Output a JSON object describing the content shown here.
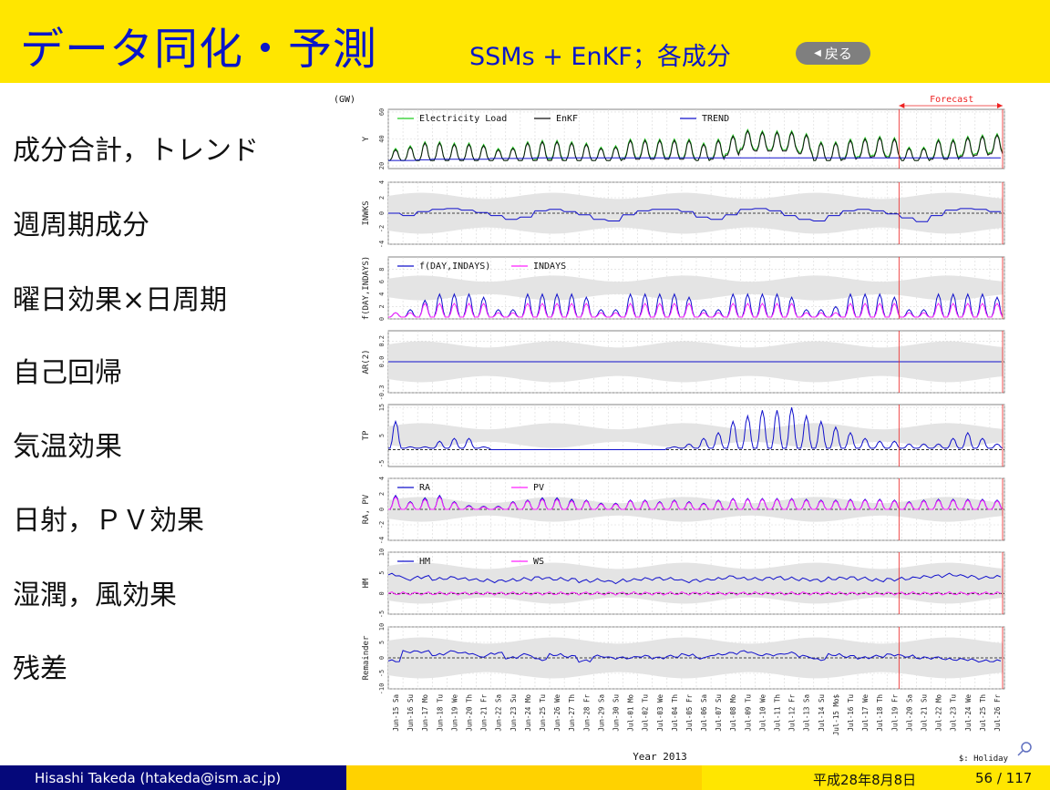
{
  "slide": {
    "title": "データ同化・予測",
    "subtitle": "SSMs + EnKF；各成分",
    "back_label": "戻る",
    "row_labels": [
      "成分合計，トレンド",
      "週周期成分",
      "曜日効果×日周期",
      "自己回帰",
      "気温効果",
      "日射，ＰＶ効果",
      "湿潤，風効果",
      "残差"
    ],
    "footer": {
      "author": "Hisashi Takeda  (htakeda@ism.ac.jp)",
      "date": "平成28年8月8日",
      "page": "56 / 117"
    }
  },
  "colors": {
    "header_bg": "#ffe600",
    "title": "#0a16c8",
    "footer_left": "#05087a",
    "footer_mid": "#ffd200"
  },
  "icons": {
    "back": "left-triangle-icon",
    "search": "search-icon"
  },
  "chart_data": {
    "type": "line",
    "xlabel": "Year 2013",
    "note": "$: Holiday",
    "forecast_label": "Forecast",
    "y_unit": "(GW)",
    "dates": [
      "Jun-15",
      "Jun-16",
      "Jun-17",
      "Jun-18",
      "Jun-19",
      "Jun-20",
      "Jun-21",
      "Jun-22",
      "Jun-23",
      "Jun-24",
      "Jun-25",
      "Jun-26",
      "Jun-27",
      "Jun-28",
      "Jun-29",
      "Jun-30",
      "Jul-01",
      "Jul-02",
      "Jul-03",
      "Jul-04",
      "Jul-05",
      "Jul-06",
      "Jul-07",
      "Jul-08",
      "Jul-09",
      "Jul-10",
      "Jul-11",
      "Jul-12",
      "Jul-13",
      "Jul-14",
      "Jul-15",
      "Jul-16",
      "Jul-17",
      "Jul-18",
      "Jul-19",
      "Jul-20",
      "Jul-21",
      "Jul-22",
      "Jul-23",
      "Jul-24",
      "Jul-25",
      "Jul-26"
    ],
    "days": [
      "Sa",
      "Su",
      "Mo",
      "Tu",
      "We",
      "Th",
      "Fr",
      "Sa",
      "Su",
      "Mo",
      "Tu",
      "We",
      "Th",
      "Fr",
      "Sa",
      "Su",
      "Mo",
      "Tu",
      "We",
      "Th",
      "Fr",
      "Sa",
      "Su",
      "Mo",
      "Tu",
      "We",
      "Th",
      "Fr",
      "Sa",
      "Su",
      "Mo$",
      "Tu",
      "We",
      "Th",
      "Fr",
      "Sa",
      "Su",
      "Mo",
      "Tu",
      "We",
      "Th",
      "Fr"
    ],
    "forecast_start_index": 35,
    "panels": [
      {
        "ylabel": "Y",
        "yticks": [
          "20",
          "40",
          "60"
        ],
        "ylim": [
          18,
          62
        ],
        "legend": [
          "Electricity Load",
          "EnKF",
          "TREND"
        ],
        "series": [
          {
            "name": "Electricity Load",
            "color": "#22cc22",
            "daily_max": [
              33,
              35,
              38,
              38,
              37,
              37,
              36,
              33,
              34,
              38,
              39,
              39,
              38,
              37,
              34,
              35,
              40,
              40,
              40,
              40,
              40,
              37,
              40,
              43,
              47,
              46,
              46,
              46,
              44,
              38,
              38,
              40,
              41,
              42,
              41,
              34,
              34,
              40,
              40,
              42,
              43,
              44
            ]
          },
          {
            "name": "EnKF",
            "color": "#111111",
            "daily_max": [
              32,
              34,
              37,
              37,
              36,
              36,
              35,
              32,
              33,
              37,
              38,
              38,
              37,
              36,
              33,
              34,
              39,
              39,
              39,
              39,
              39,
              36,
              39,
              42,
              46,
              45,
              45,
              45,
              43,
              37,
              37,
              39,
              40,
              41,
              40,
              33,
              33,
              39,
              39,
              41,
              42,
              43
            ]
          },
          {
            "name": "TREND",
            "color": "#1010cc",
            "values": [
              24,
              24,
              24.5,
              25,
              25,
              25,
              25,
              25.5,
              25.5,
              25.5,
              26,
              26,
              26,
              26,
              26,
              26,
              26,
              26,
              26,
              26,
              26,
              26,
              26,
              26,
              26,
              26,
              26,
              26,
              26,
              26,
              26,
              26,
              26,
              26,
              26,
              26,
              26,
              26,
              26,
              26,
              26,
              26
            ]
          }
        ]
      },
      {
        "ylabel": "INWKS",
        "yticks": [
          "-4",
          "-2",
          "0",
          "2",
          "4"
        ],
        "ylim": [
          -4,
          4
        ],
        "legend": [],
        "series": [
          {
            "name": "",
            "color": "#1010cc",
            "values": [
              0,
              -0.3,
              0.2,
              0.5,
              0.6,
              0.4,
              0.1,
              -0.3,
              -0.8,
              -0.5,
              0.3,
              0.5,
              0.2,
              -0.2,
              -0.8,
              -1.0,
              -0.2,
              0.3,
              0.5,
              0.5,
              0.2,
              -0.5,
              -0.8,
              -0.2,
              0.5,
              0.6,
              0.3,
              -0.3,
              -0.8,
              -1.0,
              -0.3,
              0.3,
              0.5,
              0.3,
              -0.1,
              -0.6,
              -1.1,
              -0.3,
              0.4,
              0.6,
              0.5,
              0.2
            ]
          }
        ]
      },
      {
        "ylabel": "f(DAY,INDAYS)",
        "yticks": [
          "0",
          "2",
          "4",
          "6",
          "8"
        ],
        "ylim": [
          0,
          10
        ],
        "legend": [
          "f(DAY,INDAYS)",
          "INDAYS"
        ],
        "series": [
          {
            "name": "f(DAY,INDAYS)",
            "color": "#1010cc",
            "daily_max": [
              1,
              1.5,
              3,
              4,
              4,
              4,
              3.5,
              1.5,
              1.5,
              4,
              4,
              4,
              4,
              3.5,
              1.5,
              1.5,
              4,
              4,
              4,
              4,
              3.5,
              1.5,
              1.5,
              4,
              4,
              4,
              4,
              3.5,
              1.5,
              1.5,
              2,
              4,
              4,
              4,
              3.5,
              1.5,
              1.5,
              4,
              4,
              4,
              4,
              3.5
            ]
          },
          {
            "name": "INDAYS",
            "color": "#ff22ff",
            "daily_max": [
              1,
              1,
              2.5,
              2.5,
              2.5,
              2.5,
              2.5,
              1,
              1,
              2.5,
              2.5,
              2.5,
              2.5,
              2.5,
              1,
              1,
              2.5,
              2.5,
              2.5,
              2.5,
              2.5,
              1,
              1,
              2.5,
              2.5,
              2.5,
              2.5,
              2.5,
              1,
              1,
              1,
              2.5,
              2.5,
              2.5,
              2.5,
              1,
              1,
              2.5,
              2.5,
              2.5,
              2.5,
              2.5
            ]
          }
        ]
      },
      {
        "ylabel": "AR(2)",
        "yticks": [
          "-0.3",
          "0.0",
          "0.2"
        ],
        "ylim": [
          -0.3,
          0.3
        ],
        "legend": [],
        "series": [
          {
            "name": "",
            "color": "#1010cc",
            "values": [
              0,
              0,
              0,
              0,
              0,
              0,
              0,
              0,
              0,
              0,
              0,
              0,
              0,
              0,
              0,
              0,
              0,
              0,
              0,
              0,
              0,
              0,
              0,
              0,
              0,
              0,
              0,
              0,
              0,
              0,
              0,
              0,
              0,
              0,
              0,
              0,
              0,
              0,
              0,
              0,
              0,
              0
            ]
          }
        ]
      },
      {
        "ylabel": "TP",
        "yticks": [
          "-5",
          "5",
          "15"
        ],
        "ylim": [
          -6,
          16
        ],
        "legend": [],
        "series": [
          {
            "name": "",
            "color": "#1010cc",
            "daily_max": [
              10,
              1,
              1,
              3,
              4,
              4,
              1,
              0,
              0,
              0,
              0,
              0,
              0,
              0,
              0,
              0,
              0,
              0,
              0,
              1,
              2,
              4,
              6,
              10,
              12,
              14,
              14,
              15,
              12,
              10,
              8,
              6,
              4,
              3,
              3,
              2,
              2,
              2,
              4,
              6,
              4,
              2
            ]
          }
        ]
      },
      {
        "ylabel": "RA, PV",
        "yticks": [
          "-4",
          "-2",
          "0",
          "2",
          "4"
        ],
        "ylim": [
          -4,
          4
        ],
        "legend": [
          "RA",
          "PV"
        ],
        "series": [
          {
            "name": "RA",
            "color": "#1010cc",
            "daily_max": [
              1.8,
              1,
              1.5,
              1.8,
              1,
              0.5,
              0.4,
              0.4,
              1,
              1.2,
              1.5,
              1.5,
              1.3,
              1.2,
              0.8,
              0.8,
              1.2,
              1.2,
              1,
              1.2,
              1,
              0.8,
              1.2,
              1.4,
              1.4,
              1.4,
              1.4,
              1.4,
              1.3,
              1.2,
              1.2,
              1.3,
              1.3,
              1.3,
              1.2,
              1,
              1.2,
              1.3,
              1.3,
              1.3,
              1.3,
              1.2
            ]
          },
          {
            "name": "PV",
            "color": "#ff22ff",
            "daily_max": [
              1.6,
              0.9,
              1.3,
              1.6,
              0.9,
              0.4,
              0.3,
              0.3,
              0.9,
              1.1,
              1.3,
              1.3,
              1.1,
              1.1,
              0.7,
              0.7,
              1.1,
              1.1,
              0.9,
              1.1,
              0.9,
              0.7,
              1.1,
              1.3,
              1.3,
              1.3,
              1.3,
              1.3,
              1.2,
              1.1,
              1.1,
              1.2,
              1.2,
              1.2,
              1.1,
              0.9,
              1.1,
              1.2,
              1.2,
              1.2,
              1.2,
              1.1
            ]
          }
        ]
      },
      {
        "ylabel": "HM",
        "yticks": [
          "-5",
          "0",
          "5",
          "10"
        ],
        "ylim": [
          -5,
          10
        ],
        "legend": [
          "HM",
          "WS"
        ],
        "series": [
          {
            "name": "HM",
            "color": "#1010cc",
            "values": [
              4.5,
              3.5,
              4,
              3.5,
              3.8,
              3.5,
              3.2,
              3,
              3.2,
              3.5,
              3.8,
              3.5,
              3.4,
              3,
              3.2,
              2.8,
              3.2,
              3.5,
              3.6,
              3.5,
              3,
              3.2,
              3.5,
              4,
              3.6,
              3.5,
              3.8,
              3.6,
              3.4,
              3.2,
              3.6,
              3.8,
              3.6,
              3.2,
              3.4,
              3.6,
              4,
              4.2,
              4.5,
              4.2,
              3.8,
              4
            ]
          },
          {
            "name": "WS",
            "color": "#ff22ff",
            "values": [
              0,
              0,
              0,
              0,
              0,
              0,
              0,
              0,
              0,
              0,
              0,
              0,
              0,
              0,
              0,
              0,
              0,
              0,
              0,
              0,
              0,
              0,
              0,
              0,
              0,
              0,
              0,
              0,
              0,
              0,
              0,
              0,
              0,
              0,
              0,
              0,
              0,
              0,
              0,
              0,
              0,
              0
            ]
          }
        ]
      },
      {
        "ylabel": "Remainder",
        "yticks": [
          "-10",
          "-5",
          "0",
          "5",
          "10"
        ],
        "ylim": [
          -10,
          10
        ],
        "legend": [],
        "series": [
          {
            "name": "",
            "color": "#1010cc",
            "values": [
              -1,
              2,
              2,
              1,
              2,
              1.5,
              0.5,
              1.5,
              0,
              1,
              -0.5,
              1,
              0.5,
              -1,
              0.5,
              0,
              0,
              0.5,
              0,
              0.5,
              1,
              0,
              1,
              1.5,
              2,
              1,
              1,
              1.5,
              0.5,
              -0.5,
              1,
              0.5,
              0,
              0.5,
              1,
              0.5,
              0,
              0,
              -0.5,
              -0.5,
              -1,
              -1
            ]
          }
        ]
      }
    ]
  }
}
